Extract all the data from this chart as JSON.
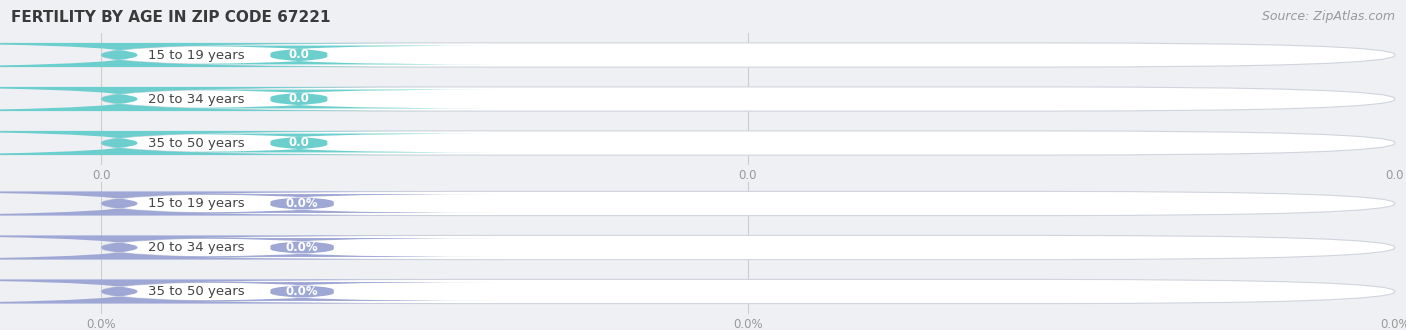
{
  "title": "FERTILITY BY AGE IN ZIP CODE 67221",
  "source": "Source: ZipAtlas.com",
  "background_color": "#eef0f4",
  "top_group": {
    "categories": [
      "15 to 19 years",
      "20 to 34 years",
      "35 to 50 years"
    ],
    "values": [
      0.0,
      0.0,
      0.0
    ],
    "bar_color": "#6dcece",
    "x_tick_labels": [
      "0.0",
      "0.0",
      "0.0"
    ]
  },
  "bottom_group": {
    "categories": [
      "15 to 19 years",
      "20 to 34 years",
      "35 to 50 years"
    ],
    "values": [
      0.0,
      0.0,
      0.0
    ],
    "bar_color": "#9fa8d5",
    "x_tick_labels": [
      "0.0%",
      "0.0%",
      "0.0%"
    ]
  },
  "title_fontsize": 11,
  "source_fontsize": 9,
  "label_fontsize": 9.5,
  "value_fontsize": 8.5,
  "tick_fontsize": 8.5
}
